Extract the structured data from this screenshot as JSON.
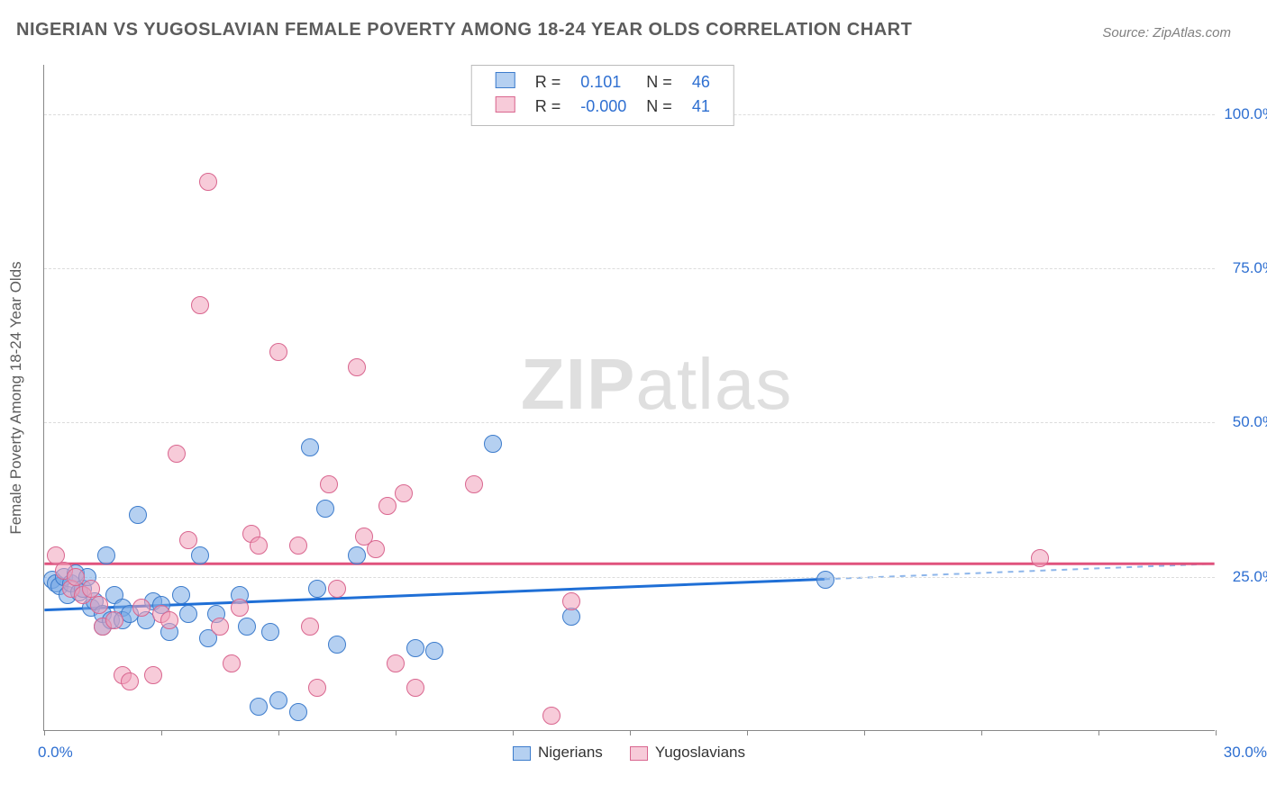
{
  "title": "NIGERIAN VS YUGOSLAVIAN FEMALE POVERTY AMONG 18-24 YEAR OLDS CORRELATION CHART",
  "source_prefix": "Source: ",
  "source_name": "ZipAtlas.com",
  "watermark_zip": "ZIP",
  "watermark_atlas": "atlas",
  "chart": {
    "type": "scatter",
    "xlim": [
      0,
      30
    ],
    "ylim": [
      0,
      108
    ],
    "xlabel_min": "0.0%",
    "xlabel_max": "30.0%",
    "ylabel": "Female Poverty Among 18-24 Year Olds",
    "yticks": [
      {
        "v": 25,
        "label": "25.0%"
      },
      {
        "v": 50,
        "label": "50.0%"
      },
      {
        "v": 75,
        "label": "75.0%"
      },
      {
        "v": 100,
        "label": "100.0%"
      }
    ],
    "xtick_positions": [
      0,
      3,
      6,
      9,
      12,
      15,
      18,
      21,
      24,
      27,
      30
    ],
    "grid_color": "#dcdcdc",
    "axis_color": "#888888",
    "background": "#ffffff",
    "marker_radius": 10,
    "series": [
      {
        "name": "Nigerians",
        "fill": "rgba(120,170,230,0.55)",
        "stroke": "#3d7ccc",
        "line_color": "#1f6fd6",
        "R": "0.101",
        "N": "46",
        "regression": {
          "x1": 0,
          "y1": 19.5,
          "x2": 20,
          "y2": 24.5,
          "dash_x2": 30,
          "dash_y2": 27
        },
        "points": [
          [
            0.2,
            24.5
          ],
          [
            0.3,
            24
          ],
          [
            0.4,
            23.5
          ],
          [
            0.5,
            25
          ],
          [
            0.6,
            22
          ],
          [
            0.7,
            24
          ],
          [
            0.8,
            25.5
          ],
          [
            0.9,
            22.5
          ],
          [
            1.0,
            23
          ],
          [
            1.1,
            25
          ],
          [
            1.2,
            20
          ],
          [
            1.3,
            21
          ],
          [
            1.5,
            17
          ],
          [
            1.5,
            19
          ],
          [
            1.6,
            28.5
          ],
          [
            1.7,
            18
          ],
          [
            1.8,
            22
          ],
          [
            2.0,
            20
          ],
          [
            2.0,
            18
          ],
          [
            2.2,
            19
          ],
          [
            2.4,
            35
          ],
          [
            2.6,
            18
          ],
          [
            2.8,
            21
          ],
          [
            3.0,
            20.5
          ],
          [
            3.2,
            16
          ],
          [
            3.5,
            22
          ],
          [
            3.7,
            19
          ],
          [
            4.0,
            28.5
          ],
          [
            4.2,
            15
          ],
          [
            4.4,
            19
          ],
          [
            5.0,
            22
          ],
          [
            5.2,
            17
          ],
          [
            5.5,
            4
          ],
          [
            5.8,
            16
          ],
          [
            6.0,
            5
          ],
          [
            6.5,
            3
          ],
          [
            6.8,
            46
          ],
          [
            7.0,
            23
          ],
          [
            7.2,
            36
          ],
          [
            7.5,
            14
          ],
          [
            8.0,
            28.5
          ],
          [
            9.5,
            13.5
          ],
          [
            10.0,
            13
          ],
          [
            11.5,
            46.5
          ],
          [
            13.5,
            18.5
          ],
          [
            20,
            24.5
          ]
        ]
      },
      {
        "name": "Yugoslavians",
        "fill": "rgba(240,160,185,0.55)",
        "stroke": "#d9668f",
        "line_color": "#e0527d",
        "R": "-0.000",
        "N": "41",
        "regression": {
          "x1": 0,
          "y1": 27,
          "x2": 30,
          "y2": 27
        },
        "points": [
          [
            0.3,
            28.5
          ],
          [
            0.5,
            26
          ],
          [
            0.7,
            23
          ],
          [
            0.8,
            25
          ],
          [
            1.0,
            22
          ],
          [
            1.2,
            23
          ],
          [
            1.4,
            20.5
          ],
          [
            1.5,
            17
          ],
          [
            1.8,
            18
          ],
          [
            2.0,
            9
          ],
          [
            2.2,
            8
          ],
          [
            2.5,
            20
          ],
          [
            2.8,
            9
          ],
          [
            3.0,
            19
          ],
          [
            3.2,
            18
          ],
          [
            3.4,
            45
          ],
          [
            3.7,
            31
          ],
          [
            4.0,
            69
          ],
          [
            4.2,
            89
          ],
          [
            4.5,
            17
          ],
          [
            4.8,
            11
          ],
          [
            5.0,
            20
          ],
          [
            5.3,
            32
          ],
          [
            5.5,
            30
          ],
          [
            6.0,
            61.5
          ],
          [
            6.5,
            30
          ],
          [
            6.8,
            17
          ],
          [
            7.0,
            7
          ],
          [
            7.3,
            40
          ],
          [
            7.5,
            23
          ],
          [
            8.0,
            59
          ],
          [
            8.2,
            31.5
          ],
          [
            8.5,
            29.5
          ],
          [
            8.8,
            36.5
          ],
          [
            9.0,
            11
          ],
          [
            9.2,
            38.5
          ],
          [
            9.5,
            7
          ],
          [
            11.0,
            40
          ],
          [
            13.0,
            2.5
          ],
          [
            13.5,
            21
          ],
          [
            25.5,
            28
          ]
        ]
      }
    ]
  }
}
